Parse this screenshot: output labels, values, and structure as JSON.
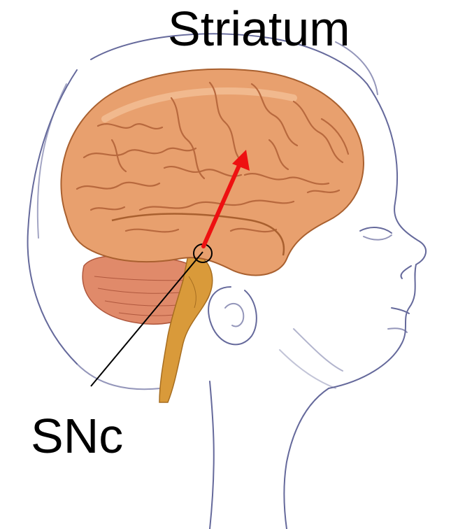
{
  "labels": {
    "top": "Striatum",
    "bottom": "SNc"
  },
  "colors": {
    "pathway_arrow": "#ee1111",
    "pointer_line": "#000000",
    "brain_fill": "#e8a06e",
    "brain_fold": "#b8693e",
    "cerebellum_fill": "#e08a6a",
    "brainstem_fill": "#d99a3a",
    "sketch_line": "#4a4f8a"
  },
  "icons": {
    "illustration": "brain-in-head-profile-icon",
    "arrow": "dopamine-pathway-arrow-icon",
    "marker": "substantia-nigra-circle-icon"
  }
}
